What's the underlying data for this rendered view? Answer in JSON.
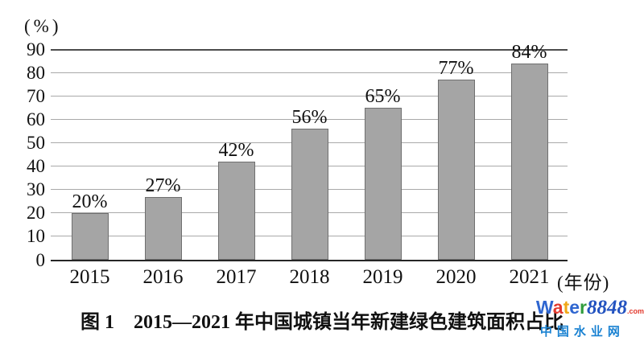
{
  "chart_data": {
    "type": "bar",
    "categories": [
      "2015",
      "2016",
      "2017",
      "2018",
      "2019",
      "2020",
      "2021"
    ],
    "values": [
      20,
      27,
      42,
      56,
      65,
      77,
      84
    ],
    "value_labels": [
      "20%",
      "27%",
      "42%",
      "56%",
      "65%",
      "77%",
      "84%"
    ],
    "xlabel": "(年份)",
    "ylabel": "(%)",
    "ylim": [
      0,
      90
    ],
    "yticks": [
      0,
      10,
      20,
      30,
      40,
      50,
      60,
      70,
      80,
      90
    ],
    "grid": "horizontal",
    "legend": "none",
    "colors": {
      "bar_fill": "#a5a5a5",
      "bar_border": "#6f6f6f",
      "gridline": "#a9a9a9",
      "top_gridline": "#4c4c4c",
      "axis_line": "#262626",
      "text": "#111111"
    }
  },
  "caption": "图 1　2015—2021 年中国城镇当年新建绿色建筑面积占比",
  "watermark": {
    "line1": [
      {
        "text": "W",
        "color": "#2f66d0",
        "class": ""
      },
      {
        "text": "a",
        "color": "#e23a2e",
        "class": ""
      },
      {
        "text": "t",
        "color": "#f0a818",
        "class": ""
      },
      {
        "text": "e",
        "color": "#2f66d0",
        "class": ""
      },
      {
        "text": "r",
        "color": "#309c3c",
        "class": ""
      },
      {
        "text": "8848",
        "color": "#2353c0",
        "class": "num"
      },
      {
        "text": ".com",
        "color": "#e23a2e",
        "class": "com"
      }
    ],
    "line2": "中国水业网",
    "line2_color": "#1a82d2"
  }
}
